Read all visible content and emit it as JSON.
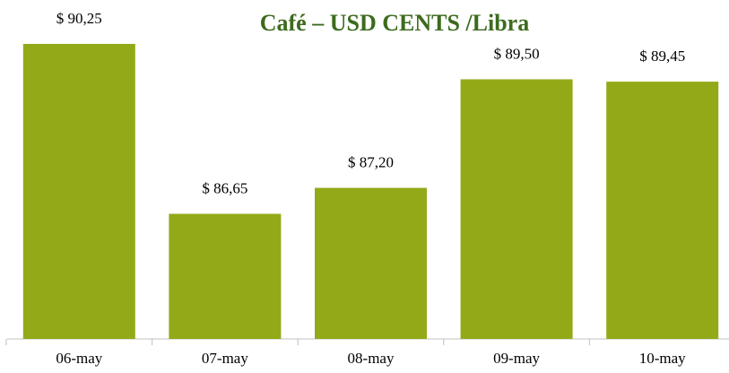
{
  "chart_data": {
    "type": "bar",
    "title": "Café – USD CENTS /Libra",
    "categories": [
      "06-may",
      "07-may",
      "08-may",
      "09-may",
      "10-may"
    ],
    "values": [
      90.25,
      86.65,
      87.2,
      89.5,
      89.45
    ],
    "value_labels": [
      "$ 90,25",
      "$ 86,65",
      "$ 87,20",
      "$ 89,50",
      "$ 89,45"
    ],
    "color": "#94a917",
    "ylim": [
      84,
      90.42
    ]
  }
}
